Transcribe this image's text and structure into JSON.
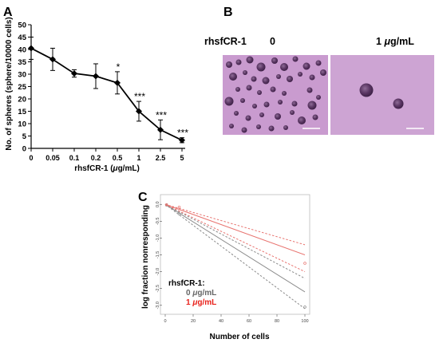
{
  "panel_a": {
    "label": "A",
    "ylabel": "No. of spheres (sphere/10000 cells)",
    "xlabel_prefix": "rhsfCR-1 (",
    "xlabel_unit_mu": "μ",
    "xlabel_unit_rest": "g/mL)"
  },
  "panel_b": {
    "label": "B",
    "row_label": "rhsfCR-1",
    "dose_0": "0",
    "dose_1_num": "1 ",
    "dose_1_mu": "μ",
    "dose_1_rest": "g/mL"
  },
  "panel_c": {
    "label": "C",
    "legend_title": "rhsfCR-1:",
    "legend_0_num": "0 ",
    "legend_0_mu": "μ",
    "legend_0_rest": "g/mL",
    "legend_1_num": "1 ",
    "legend_1_mu": "μ",
    "legend_1_rest": "g/mL"
  },
  "colors": {
    "gray_line": "#8a8a8a",
    "red_line": "#e8736f",
    "legend_red": "#e8201a",
    "legend_gray": "#666666",
    "micrograph_bg": "#c99bcf",
    "sphere": "#4a2a52"
  },
  "chart_data": [
    {
      "id": "A",
      "type": "line",
      "categories": [
        "0",
        "0.05",
        "0.1",
        "0.2",
        "0.5",
        "1",
        "2.5",
        "5"
      ],
      "series": [
        {
          "values": [
            40.5,
            36,
            30.3,
            29.2,
            26.5,
            15,
            7.5,
            3.3
          ],
          "errors": [
            4.5,
            4.5,
            1.5,
            5,
            4.5,
            4,
            4,
            1
          ],
          "significance": [
            "",
            "",
            "",
            "",
            "*",
            "***",
            "***",
            "***"
          ]
        }
      ],
      "xlabel": "rhsfCR-1 (μg/mL)",
      "ylabel": "No. of spheres (sphere/10000 cells)",
      "ylim": [
        0,
        50
      ],
      "yticks": [
        0,
        5,
        10,
        15,
        20,
        25,
        30,
        35,
        40,
        45,
        50
      ],
      "grid": false
    },
    {
      "id": "C",
      "type": "line",
      "xlabel": "Number of cells",
      "ylabel": "log fraction nonresponding",
      "xlim": [
        0,
        100
      ],
      "ylim": [
        -3.1,
        0.1
      ],
      "xticks": [
        0,
        20,
        40,
        60,
        80,
        100
      ],
      "yticks": [
        0,
        -0.5,
        -1,
        -1.5,
        -2,
        -2.5,
        -3
      ],
      "ytick_labels": [
        "0.0",
        "-0.5",
        "-1.0",
        "-1.5",
        "-2.0",
        "-2.5",
        "-3.0"
      ],
      "series": [
        {
          "legend": "0 μg/mL",
          "color": "#8a8a8a",
          "x": [
            0,
            100
          ],
          "estimate": [
            0,
            -2.6
          ],
          "upper": [
            0,
            -2.2
          ],
          "lower": [
            0,
            -3.1
          ],
          "points": [
            [
              1,
              -0.02
            ],
            [
              10,
              -0.28
            ],
            [
              100,
              -3.05
            ]
          ]
        },
        {
          "legend": "1 μg/mL",
          "color": "#e8736f",
          "x": [
            0,
            100
          ],
          "estimate": [
            0,
            -1.5
          ],
          "upper": [
            0,
            -1.2
          ],
          "lower": [
            0,
            -2.0
          ],
          "points": [
            [
              1,
              -0.01
            ],
            [
              10,
              -0.08
            ],
            [
              100,
              -1.75
            ]
          ]
        }
      ],
      "legend_title": "rhsfCR-1:",
      "legend_position": "bottom-left"
    }
  ]
}
